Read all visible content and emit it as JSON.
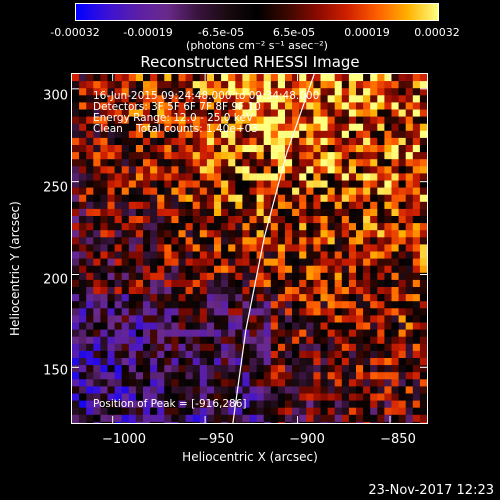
{
  "colors": {
    "background": "#000000",
    "foreground": "#ffffff",
    "colormap": [
      "#0000ff",
      "#3a10d8",
      "#5a1fa8",
      "#6a2a8c",
      "#3a1440",
      "#1a0a10",
      "#000000",
      "#3a0800",
      "#8a0a00",
      "#d02000",
      "#ff6000",
      "#ffb000",
      "#ffff80"
    ]
  },
  "colorbar": {
    "ticks": [
      "-0.00032",
      "-0.00019",
      "-6.5e-05",
      "6.5e-05",
      "0.00019",
      "0.00032"
    ],
    "units": "(photons cm⁻² s⁻¹ asec⁻²)"
  },
  "chart_data": {
    "type": "heatmap",
    "title": "Reconstructed RHESSI Image",
    "xlabel": "Heliocentric X (arcsec)",
    "ylabel": "Heliocentric Y (arcsec)",
    "xlim": [
      -1022,
      -830
    ],
    "ylim": [
      120,
      308
    ],
    "xticks": [
      -1000,
      -950,
      -900,
      -850
    ],
    "yticks": [
      150,
      200,
      250,
      300
    ],
    "xtick_labels": [
      "−1000",
      "−950",
      "−900",
      "−850"
    ],
    "ytick_labels": [
      "150",
      "200",
      "250",
      "300"
    ],
    "colorbar_range": [
      -0.00032,
      0.00032
    ],
    "limb_curve": [
      [
        -935,
        120
      ],
      [
        -928,
        170
      ],
      [
        -918,
        220
      ],
      [
        -906,
        265
      ],
      [
        -891,
        308
      ]
    ],
    "peak": [
      -916,
      286
    ]
  },
  "info": {
    "line1": "16-Jun-2015 09:24:48.000 to 09:34:48.000",
    "line2": "Detectors: 3F 5F 6F 7F 8F 9F 10",
    "line3": "Energy Range: 12.0 - 25.0 keV",
    "line4": "Clean    Total counts: 1.40e+03",
    "peak_text": "Position of Peak = [-916,286]"
  },
  "footer": {
    "date": "23-Nov-2017 12:23"
  }
}
